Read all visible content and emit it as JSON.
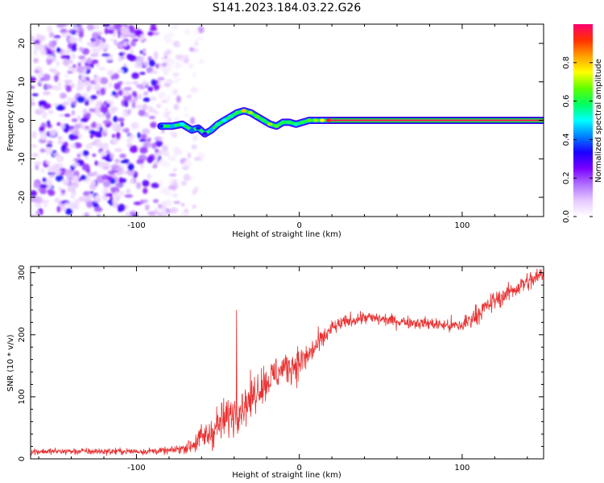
{
  "figure": {
    "title": "S141.2023.184.03.22.G26"
  },
  "chart_data": [
    {
      "type": "heatmap",
      "xlabel": "Height of straight line (km)",
      "ylabel": "Frequency (Hz)",
      "xlim": [
        -165,
        150
      ],
      "ylim": [
        -25,
        25
      ],
      "xticks": [
        -100,
        0,
        100
      ],
      "yticks": [
        -20,
        -10,
        0,
        10,
        20
      ],
      "colorbar": {
        "label": "Normalized spectral amplitude",
        "range": [
          0,
          1
        ],
        "ticks": [
          0.0,
          0.2,
          0.4,
          0.6,
          0.8
        ],
        "colors": [
          "#ffffff",
          "#e6c8ff",
          "#b070ff",
          "#7a00ff",
          "#1a00ff",
          "#0080ff",
          "#00ffff",
          "#00ff60",
          "#60ff00",
          "#ffff00",
          "#ffa000",
          "#ff3000",
          "#ff0070"
        ]
      },
      "noise_region": {
        "x": [
          -165,
          -75
        ],
        "note_level": 0.3
      },
      "ridge": {
        "x": [
          -85,
          -78,
          -72,
          -66,
          -62,
          -58,
          -54,
          -50,
          -46,
          -42,
          -38,
          -34,
          -30,
          -26,
          -22,
          -18,
          -14,
          -10,
          -6,
          -2,
          2,
          6,
          10,
          14,
          18,
          150
        ],
        "freq": [
          -1.5,
          -1.5,
          -1.0,
          -2.5,
          -2.0,
          -3.5,
          -2.5,
          -1.0,
          0.0,
          1.0,
          2.0,
          2.5,
          2.0,
          1.0,
          0.0,
          -1.0,
          -1.5,
          -0.5,
          -0.5,
          -1.0,
          -0.5,
          0.0,
          0.0,
          0.0,
          0.0,
          0.0
        ],
        "amplitude": [
          0.35,
          0.45,
          0.5,
          0.4,
          0.35,
          0.3,
          0.45,
          0.55,
          0.5,
          0.55,
          0.6,
          0.8,
          0.7,
          0.65,
          0.6,
          0.7,
          0.65,
          0.6,
          0.6,
          0.55,
          0.6,
          0.65,
          0.7,
          0.75,
          0.95,
          0.98
        ]
      }
    },
    {
      "type": "line",
      "xlabel": "Height of straight line (km)",
      "ylabel": "SNR (10 * v/v)",
      "xlim": [
        -165,
        150
      ],
      "ylim": [
        0,
        310
      ],
      "xticks": [
        -100,
        0,
        100
      ],
      "yticks": [
        0,
        100,
        200,
        300
      ],
      "color": "#e83030",
      "series": [
        {
          "x": [
            -165,
            -140,
            -120,
            -100,
            -80,
            -70,
            -65,
            -60,
            -55,
            -50,
            -45,
            -40,
            -35,
            -30,
            -25,
            -20,
            -15,
            -10,
            -5,
            0,
            5,
            10,
            15,
            20,
            25,
            30,
            35,
            40,
            50,
            60,
            70,
            80,
            90,
            95,
            100,
            105,
            110,
            115,
            120,
            125,
            130,
            135,
            140,
            145,
            150
          ],
          "values": [
            12,
            12,
            12,
            12,
            13,
            18,
            24,
            34,
            40,
            55,
            65,
            75,
            85,
            95,
            115,
            125,
            135,
            145,
            150,
            155,
            165,
            180,
            195,
            210,
            217,
            222,
            225,
            228,
            225,
            222,
            220,
            218,
            215,
            214,
            215,
            225,
            235,
            245,
            255,
            262,
            270,
            278,
            285,
            290,
            300
          ],
          "noise": [
            5,
            5,
            5,
            5,
            5,
            8,
            15,
            20,
            25,
            28,
            30,
            30,
            30,
            30,
            28,
            28,
            26,
            25,
            25,
            25,
            22,
            18,
            15,
            12,
            10,
            10,
            10,
            10,
            9,
            9,
            9,
            9,
            10,
            12,
            14,
            14,
            14,
            14,
            14,
            14,
            14,
            14,
            14,
            14,
            14
          ]
        }
      ],
      "annotations": [
        {
          "x": -38.5,
          "y": 240,
          "note": "spike"
        }
      ]
    }
  ]
}
